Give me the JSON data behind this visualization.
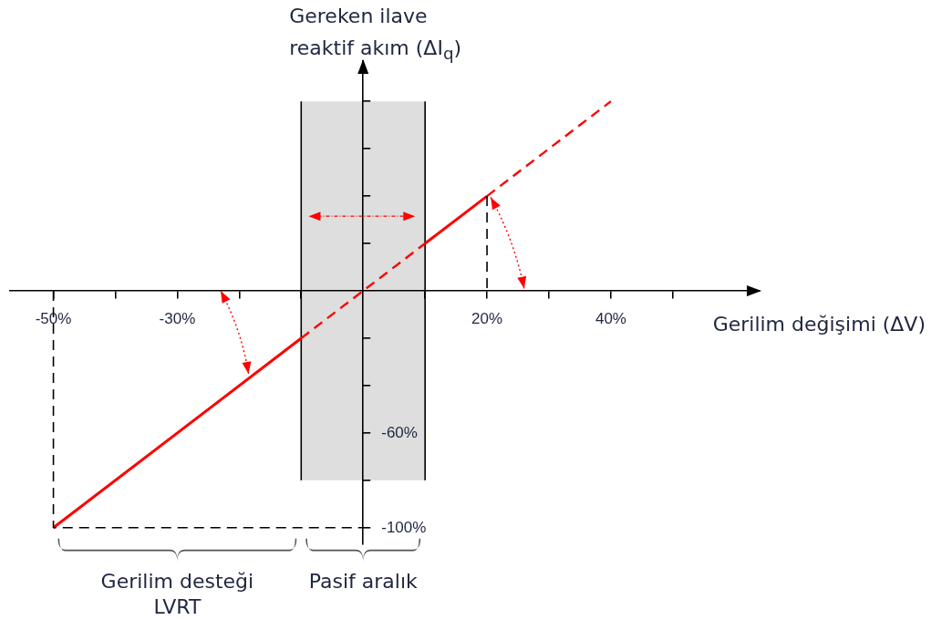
{
  "chart_data": {
    "type": "line",
    "xlabel": "Gerilim değişimi (ΔV)",
    "ylabel": "Gereken ilave reaktif akım (ΔI$_{q}$)",
    "xlim": [
      -57,
      64
    ],
    "ylim": [
      -107,
      97
    ],
    "xticks": [
      {
        "value": -50,
        "label": "-50%"
      },
      {
        "value": -40,
        "label": null
      },
      {
        "value": -30,
        "label": "-30%"
      },
      {
        "value": -20,
        "label": null
      },
      {
        "value": -10,
        "label": null
      },
      {
        "value": 10,
        "label": null
      },
      {
        "value": 20,
        "label": "20%"
      },
      {
        "value": 30,
        "label": null
      },
      {
        "value": 40,
        "label": "40%"
      },
      {
        "value": 50,
        "label": null
      }
    ],
    "yticks": [
      {
        "value": -100,
        "label": "-100%"
      },
      {
        "value": -80,
        "label": null
      },
      {
        "value": -60,
        "label": "-60%"
      },
      {
        "value": -40,
        "label": null
      },
      {
        "value": -20,
        "label": null
      },
      {
        "value": 20,
        "label": null
      },
      {
        "value": 40,
        "label": null
      },
      {
        "value": 60,
        "label": null
      },
      {
        "value": 80,
        "label": null
      }
    ],
    "series": [
      {
        "x": [
          -50,
          -10
        ],
        "values": [
          -100,
          -20
        ],
        "color": "#ff0000",
        "line_style": "solid"
      },
      {
        "x": [
          -10,
          10
        ],
        "values": [
          -20,
          20
        ],
        "color": "#ff0000",
        "line_style": "dashed"
      },
      {
        "x": [
          10,
          20
        ],
        "values": [
          20,
          40
        ],
        "color": "#ff0000",
        "line_style": "solid"
      },
      {
        "x": [
          20,
          40
        ],
        "values": [
          40,
          80
        ],
        "color": "#ff0000",
        "line_style": "dashed"
      },
      {
        "x": [
          -50,
          -50,
          0
        ],
        "values": [
          0,
          -100,
          -100
        ],
        "color": "#000000",
        "line_style": "dashed"
      },
      {
        "x": [
          20,
          20
        ],
        "values": [
          40,
          0
        ],
        "color": "#000000",
        "line_style": "dashed"
      }
    ],
    "bands": [
      {
        "axis": "x",
        "from": -10,
        "to": 10,
        "color": "#808080"
      }
    ],
    "annotations": [
      "Gerilim desteği LVRT",
      "Pasif aralık"
    ]
  }
}
